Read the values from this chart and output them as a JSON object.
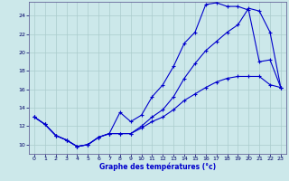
{
  "xlabel": "Graphe des températures (°c)",
  "xlim": [
    -0.5,
    23.5
  ],
  "ylim": [
    9,
    25.5
  ],
  "xticks": [
    0,
    1,
    2,
    3,
    4,
    5,
    6,
    7,
    8,
    9,
    10,
    11,
    12,
    13,
    14,
    15,
    16,
    17,
    18,
    19,
    20,
    21,
    22,
    23
  ],
  "yticks": [
    10,
    12,
    14,
    16,
    18,
    20,
    22,
    24
  ],
  "background_color": "#cce8ea",
  "grid_color": "#aacccc",
  "line_color": "#0000cc",
  "line1_x": [
    0,
    1,
    2,
    3,
    4,
    5,
    6,
    7,
    8,
    9,
    10,
    11,
    12,
    13,
    14,
    15,
    16,
    17,
    18,
    19,
    20,
    21,
    22,
    23
  ],
  "line1_y": [
    13.0,
    12.2,
    11.0,
    10.5,
    9.8,
    10.0,
    10.8,
    11.2,
    13.5,
    12.5,
    13.2,
    15.2,
    16.5,
    18.5,
    21.0,
    22.2,
    25.2,
    25.4,
    25.0,
    25.0,
    24.6,
    19.0,
    19.2,
    16.2
  ],
  "line2_x": [
    0,
    1,
    2,
    3,
    4,
    5,
    6,
    7,
    8,
    9,
    10,
    11,
    12,
    13,
    14,
    15,
    16,
    17,
    18,
    19,
    20,
    21,
    22,
    23
  ],
  "line2_y": [
    13.0,
    12.2,
    11.0,
    10.5,
    9.8,
    10.0,
    10.8,
    11.2,
    11.2,
    11.2,
    12.0,
    13.0,
    13.8,
    15.2,
    17.2,
    18.8,
    20.2,
    21.2,
    22.2,
    23.0,
    24.8,
    24.5,
    22.2,
    16.2
  ],
  "line3_x": [
    0,
    1,
    2,
    3,
    4,
    5,
    6,
    7,
    8,
    9,
    10,
    11,
    12,
    13,
    14,
    15,
    16,
    17,
    18,
    19,
    20,
    21,
    22,
    23
  ],
  "line3_y": [
    13.0,
    12.2,
    11.0,
    10.5,
    9.8,
    10.0,
    10.8,
    11.2,
    11.2,
    11.2,
    11.8,
    12.5,
    13.0,
    13.8,
    14.8,
    15.5,
    16.2,
    16.8,
    17.2,
    17.4,
    17.4,
    17.4,
    16.5,
    16.2
  ]
}
